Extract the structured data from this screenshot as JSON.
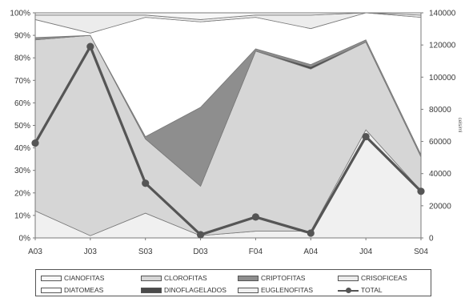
{
  "chart_data": {
    "type": "area",
    "stacked_percent": true,
    "categories": [
      "A03",
      "J03",
      "S03",
      "D03",
      "F04",
      "A04",
      "J04",
      "S04"
    ],
    "y_left_ticks": [
      "0%",
      "10%",
      "20%",
      "30%",
      "40%",
      "50%",
      "60%",
      "70%",
      "80%",
      "90%",
      "100%"
    ],
    "y_right_ticks": [
      "0",
      "20000",
      "40000",
      "60000",
      "80000",
      "100000",
      "120000",
      "140000"
    ],
    "y_right_label": "cels/ml",
    "ylim_left": [
      0,
      100
    ],
    "ylim_right": [
      0,
      140000
    ],
    "series": [
      {
        "name": "EUGLENOFITAS",
        "values": [
          12,
          1,
          11,
          1,
          3,
          3,
          48,
          21
        ],
        "color": "#f0f0f0"
      },
      {
        "name": "CLOROFITAS",
        "values": [
          76,
          89,
          33,
          22,
          80,
          72,
          39,
          15
        ],
        "color": "#d6d6d6"
      },
      {
        "name": "DINOFLAGELADOS",
        "values": [
          0,
          0,
          0,
          0,
          0,
          1,
          0,
          0
        ],
        "color": "#4a4a4a"
      },
      {
        "name": "CRIPTOFITAS",
        "values": [
          1,
          0,
          1,
          35,
          1,
          1,
          1,
          1
        ],
        "color": "#8e8e8e"
      },
      {
        "name": "DIATOMEAS",
        "values": [
          8,
          1,
          53,
          38,
          14,
          16,
          12,
          61
        ],
        "color": "#ffffff"
      },
      {
        "name": "CRISOFICEAS",
        "values": [
          2,
          8,
          1,
          1,
          1,
          6,
          0,
          1
        ],
        "color": "#ececec"
      },
      {
        "name": "CIANOFITAS",
        "values": [
          1,
          1,
          1,
          3,
          1,
          1,
          0,
          1
        ],
        "color": "#f7f7f7"
      }
    ],
    "total": {
      "name": "TOTAL",
      "values": [
        59000,
        119000,
        34000,
        2000,
        13000,
        3000,
        63000,
        29000
      ],
      "color": "#555555"
    }
  },
  "legend": [
    {
      "label": "CIANOFITAS",
      "type": "area",
      "color": "#f7f7f7"
    },
    {
      "label": "CLOROFITAS",
      "type": "area",
      "color": "#d6d6d6"
    },
    {
      "label": "CRIPTOFITAS",
      "type": "area",
      "color": "#8e8e8e"
    },
    {
      "label": "CRISOFICEAS",
      "type": "area",
      "color": "#ececec"
    },
    {
      "label": "DIATOMEAS",
      "type": "area",
      "color": "#ffffff"
    },
    {
      "label": "DINOFLAGELADOS",
      "type": "area",
      "color": "#4a4a4a"
    },
    {
      "label": "EUGLENOFITAS",
      "type": "area",
      "color": "#f0f0f0"
    },
    {
      "label": "TOTAL",
      "type": "line",
      "color": "#555555"
    }
  ]
}
